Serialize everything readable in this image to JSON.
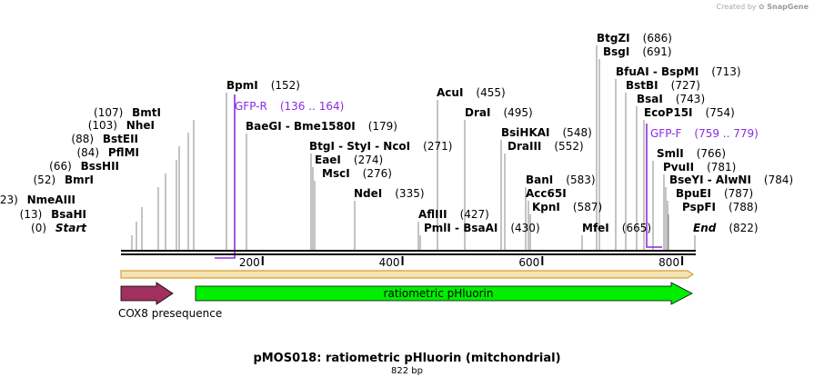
{
  "credit": {
    "prefix": "Created by",
    "brand": "SnapGene"
  },
  "title": "pMOS018: ratiometric pHluorin (mitchondrial)",
  "length_label": "822 bp",
  "colors": {
    "primer": "#8b2be2",
    "cox8": "#a0305d",
    "phluorin": "#00ee00",
    "backbone_fill": "#f5e3b3",
    "backbone_stroke": "#d4a03a"
  },
  "ruler": {
    "ticks": [
      {
        "value": 200,
        "label": "200"
      },
      {
        "value": 400,
        "label": "400"
      },
      {
        "value": 600,
        "label": "600"
      },
      {
        "value": 800,
        "label": "800"
      }
    ]
  },
  "features": [
    {
      "name": "COX8 presequence",
      "type": "cox8"
    },
    {
      "name": "ratiometric pHluorin",
      "type": "phluorin"
    }
  ],
  "primers": [
    {
      "name": "GFP-R",
      "range": "(136 .. 164)"
    },
    {
      "name": "GFP-F",
      "range": "(759 .. 779)"
    }
  ],
  "sites": [
    {
      "label": "Start",
      "pos": "(0)",
      "italic": true,
      "numFirst": true
    },
    {
      "label": "BsaHI",
      "pos": "(13)",
      "numFirst": true
    },
    {
      "label": "NmeAIII",
      "pos": "(23)",
      "numFirst": true
    },
    {
      "label": "BmrI",
      "pos": "(52)",
      "numFirst": true
    },
    {
      "label": "BssHII",
      "pos": "(66)",
      "numFirst": true
    },
    {
      "label": "PflMI",
      "pos": "(84)",
      "numFirst": true
    },
    {
      "label": "BstEII",
      "pos": "(88)",
      "numFirst": true
    },
    {
      "label": "NheI",
      "pos": "(103)",
      "numFirst": true
    },
    {
      "label": "BmtI",
      "pos": "(107)",
      "numFirst": true
    },
    {
      "label": "BpmI",
      "pos": "(152)"
    },
    {
      "label": "BaeGI - Bme1580I",
      "pos": "(179)"
    },
    {
      "label": "BtgI - StyI - NcoI",
      "pos": "(271)"
    },
    {
      "label": "EaeI",
      "pos": "(274)"
    },
    {
      "label": "MscI",
      "pos": "(276)"
    },
    {
      "label": "NdeI",
      "pos": "(335)"
    },
    {
      "label": "AflIII",
      "pos": "(427)"
    },
    {
      "label": "PmlI - BsaAI",
      "pos": "(430)"
    },
    {
      "label": "AcuI",
      "pos": "(455)"
    },
    {
      "label": "DraI",
      "pos": "(495)"
    },
    {
      "label": "BsiHKAI",
      "pos": "(548)"
    },
    {
      "label": "DraIII",
      "pos": "(552)"
    },
    {
      "label": "BanI",
      "pos": "(583)"
    },
    {
      "label": "Acc65I",
      "pos": ""
    },
    {
      "label": "KpnI",
      "pos": "(587)"
    },
    {
      "label": "MfeI",
      "pos": "(665)"
    },
    {
      "label": "BtgZI",
      "pos": "(686)"
    },
    {
      "label": "BsgI",
      "pos": "(691)"
    },
    {
      "label": "BfuAI - BspMI",
      "pos": "(713)"
    },
    {
      "label": "BstBI",
      "pos": "(727)"
    },
    {
      "label": "BsaI",
      "pos": "(743)"
    },
    {
      "label": "EcoP15I",
      "pos": "(754)"
    },
    {
      "label": "SmlI",
      "pos": "(766)"
    },
    {
      "label": "PvuII",
      "pos": "(781)"
    },
    {
      "label": "BseYI - AlwNI",
      "pos": "(784)"
    },
    {
      "label": "BpuEI",
      "pos": "(787)"
    },
    {
      "label": "PspFI",
      "pos": "(788)"
    },
    {
      "label": "End",
      "pos": "(822)",
      "italic": true
    }
  ]
}
